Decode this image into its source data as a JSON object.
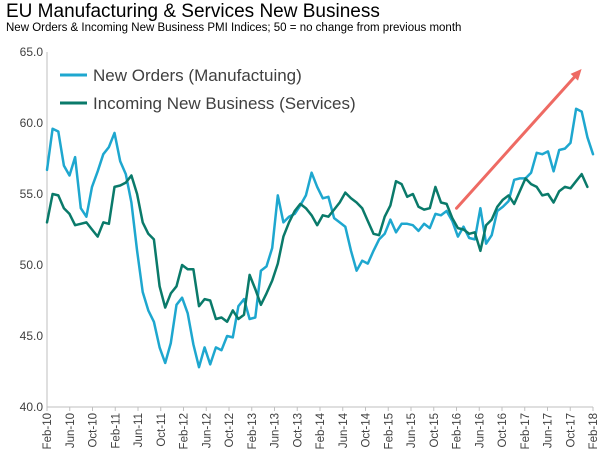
{
  "title": "EU Manufacturing & Services New Business",
  "subtitle": "New Orders & Incoming New Business PMI Indices; 50 = no change from previous month",
  "colors": {
    "new_orders": "#1ea7cf",
    "incoming_new_business": "#0a7a6a",
    "trend_arrow": "#ee6a63",
    "axis": "#bfbfbf"
  },
  "chart_data": {
    "type": "line",
    "title": "EU Manufacturing & Services New Business",
    "subtitle": "New Orders & Incoming New Business PMI Indices; 50 = no change from previous month",
    "ylim": [
      40,
      65
    ],
    "yticks": [
      "40.0",
      "45.0",
      "50.0",
      "55.0",
      "60.0",
      "65.0"
    ],
    "x_range": [
      "Feb-10",
      "Feb-18"
    ],
    "xticks": [
      "Feb-10",
      "Jun-10",
      "Oct-10",
      "Feb-11",
      "Jun-11",
      "Oct-11",
      "Feb-12",
      "Jun-12",
      "Oct-12",
      "Feb-13",
      "Jun-13",
      "Oct-13",
      "Feb-14",
      "Jun-14",
      "Oct-14",
      "Feb-15",
      "Jun-15",
      "Oct-15",
      "Feb-16",
      "Jun-16",
      "Oct-16",
      "Feb-17",
      "Jun-17",
      "Oct-17",
      "Feb-18"
    ],
    "grid": false,
    "legend_position": "top-left",
    "annotations": [
      {
        "type": "arrow",
        "from": {
          "x": "Feb-16",
          "y": 54.0
        },
        "to": {
          "x": "Dec-17",
          "y": 63.8
        }
      }
    ],
    "series": [
      {
        "name": "New Orders (Manufactuing)",
        "color": "#1ea7cf",
        "values": [
          56.7,
          59.6,
          59.4,
          57.0,
          56.3,
          57.6,
          54.0,
          53.4,
          55.5,
          56.6,
          57.8,
          58.3,
          59.3,
          57.3,
          56.4,
          54.4,
          51.0,
          48.1,
          46.8,
          46.0,
          44.2,
          43.1,
          44.5,
          47.2,
          47.7,
          46.6,
          44.4,
          42.8,
          44.2,
          43.0,
          44.2,
          44.0,
          45.0,
          44.9,
          47.1,
          47.6,
          46.2,
          46.3,
          49.6,
          49.9,
          51.2,
          54.9,
          53.0,
          53.4,
          53.6,
          54.2,
          54.9,
          56.5,
          55.5,
          54.7,
          54.8,
          53.3,
          53.0,
          52.7,
          51.0,
          49.6,
          50.3,
          50.1,
          51.0,
          51.8,
          52.2,
          53.2,
          52.3,
          52.9,
          52.9,
          52.8,
          52.4,
          52.9,
          52.6,
          53.6,
          53.5,
          53.8,
          53.1,
          52.0,
          52.7,
          51.9,
          51.8,
          54.0,
          51.5,
          52.1,
          53.8,
          54.1,
          54.5,
          56.0,
          56.1,
          56.1,
          56.5,
          57.9,
          57.8,
          58.0,
          56.6,
          58.1,
          58.2,
          58.6,
          61.0,
          60.8,
          59.0,
          57.8
        ]
      },
      {
        "name": "Incoming New Business (Services)",
        "color": "#0a7a6a",
        "values": [
          53.0,
          55.0,
          54.9,
          54.0,
          53.6,
          52.8,
          52.9,
          53.0,
          52.5,
          52.0,
          53.0,
          52.9,
          55.5,
          55.6,
          55.8,
          56.3,
          55.0,
          53.0,
          52.2,
          51.8,
          48.5,
          47.0,
          48.0,
          48.5,
          50.0,
          49.7,
          49.7,
          47.1,
          47.6,
          47.5,
          46.2,
          46.3,
          46.0,
          46.8,
          46.2,
          46.5,
          49.3,
          48.3,
          47.2,
          48.0,
          48.9,
          50.1,
          52.0,
          53.0,
          53.8,
          54.3,
          54.0,
          53.5,
          52.8,
          53.5,
          53.4,
          53.9,
          54.4,
          55.1,
          54.7,
          54.4,
          54.0,
          53.1,
          52.2,
          52.1,
          53.4,
          54.2,
          55.9,
          55.7,
          54.8,
          55.0,
          54.1,
          53.9,
          54.0,
          55.5,
          54.4,
          54.3,
          53.3,
          52.6,
          52.5,
          52.2,
          52.3,
          51.0,
          52.8,
          53.2,
          54.1,
          54.6,
          54.9,
          54.3,
          55.2,
          56.1,
          55.7,
          55.5,
          54.9,
          55.0,
          54.4,
          55.2,
          55.5,
          55.4,
          55.9,
          56.4,
          55.5
        ]
      }
    ]
  }
}
